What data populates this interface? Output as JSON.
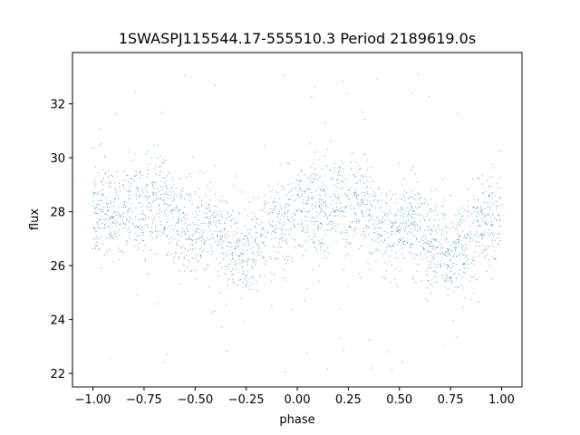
{
  "chart_data": {
    "type": "scatter",
    "title": "1SWASPJ115544.17-555510.3 Period 2189619.0s",
    "xlabel": "phase",
    "ylabel": "flux",
    "xlim": [
      -1.1,
      1.1
    ],
    "ylim": [
      21.5,
      33.9
    ],
    "xticks": [
      -1.0,
      -0.75,
      -0.5,
      -0.25,
      0.0,
      0.25,
      0.5,
      0.75,
      1.0
    ],
    "xtick_labels": [
      "−1.00",
      "−0.75",
      "−0.50",
      "−0.25",
      "0.00",
      "0.25",
      "0.50",
      "0.75",
      "1.00"
    ],
    "yticks": [
      22,
      24,
      26,
      28,
      30,
      32
    ],
    "ytick_labels": [
      "22",
      "24",
      "26",
      "28",
      "30",
      "32"
    ],
    "grid": false,
    "marker_color": "#1f77b4",
    "series": [
      {
        "phase_range": [
          -1.0,
          1.0
        ],
        "flux_profile": {
          "phase": [
            0.0,
            0.05,
            0.1,
            0.15,
            0.2,
            0.25,
            0.3,
            0.35,
            0.4,
            0.45,
            0.5,
            0.55,
            0.6,
            0.65,
            0.7,
            0.75,
            0.8,
            0.85,
            0.9,
            0.95,
            1.0
          ],
          "flux": [
            27.9,
            28.1,
            27.8,
            28.0,
            28.3,
            27.9,
            28.6,
            28.2,
            27.5,
            27.3,
            27.2,
            27.6,
            27.4,
            26.8,
            26.5,
            26.3,
            26.6,
            27.2,
            27.6,
            27.7,
            27.9
          ]
        },
        "scatter_sd": 0.85,
        "outlier_range": [
          22.0,
          33.4
        ]
      }
    ]
  }
}
